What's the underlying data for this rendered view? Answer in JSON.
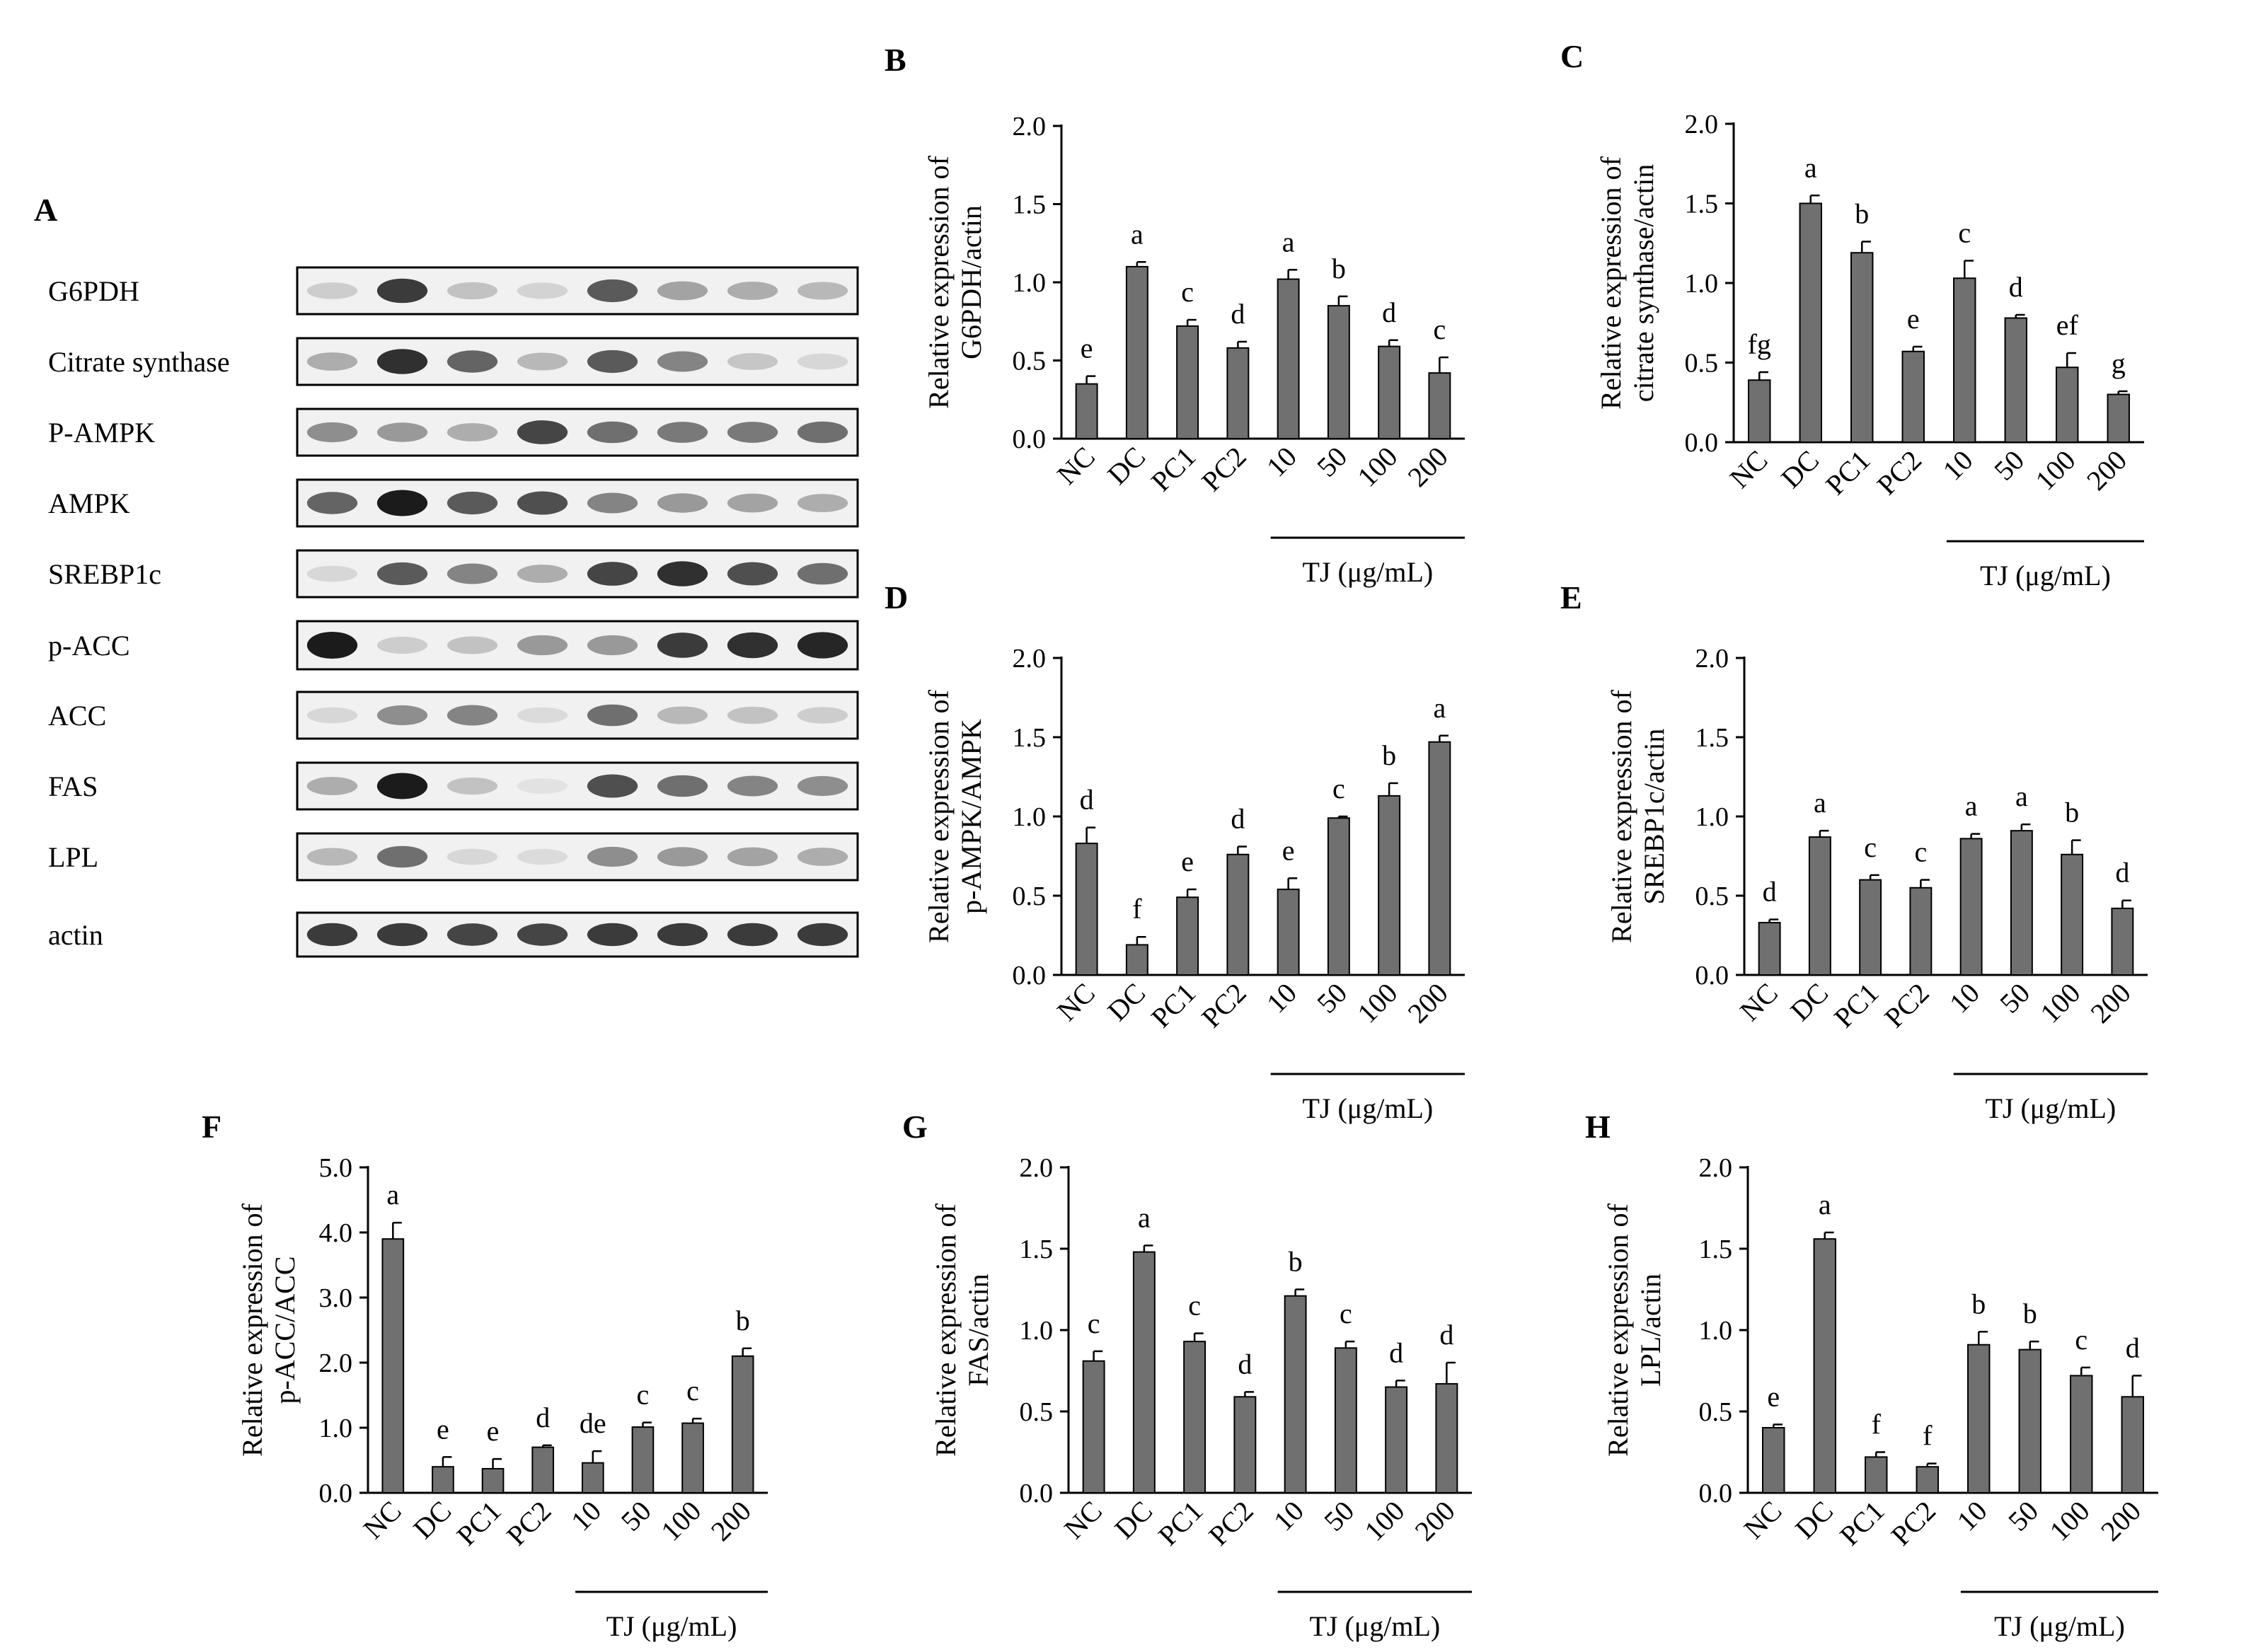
{
  "blot": {
    "panel_label": "A",
    "rows": [
      "G6PDH",
      "Citrate synthase",
      "P-AMPK",
      "AMPK",
      "SREBP1c",
      "p-ACC",
      "ACC",
      "FAS",
      "LPL",
      "actin"
    ],
    "intensities": [
      [
        0.15,
        0.85,
        0.2,
        0.12,
        0.7,
        0.35,
        0.3,
        0.25
      ],
      [
        0.3,
        0.9,
        0.65,
        0.25,
        0.7,
        0.5,
        0.18,
        0.1
      ],
      [
        0.45,
        0.4,
        0.3,
        0.8,
        0.6,
        0.55,
        0.55,
        0.6
      ],
      [
        0.65,
        1.0,
        0.7,
        0.75,
        0.5,
        0.4,
        0.35,
        0.3
      ],
      [
        0.1,
        0.7,
        0.5,
        0.3,
        0.8,
        0.9,
        0.75,
        0.6
      ],
      [
        1.0,
        0.15,
        0.2,
        0.4,
        0.4,
        0.85,
        0.9,
        0.95
      ],
      [
        0.1,
        0.45,
        0.5,
        0.08,
        0.6,
        0.25,
        0.2,
        0.15
      ],
      [
        0.3,
        1.0,
        0.2,
        0.05,
        0.75,
        0.6,
        0.5,
        0.45
      ],
      [
        0.25,
        0.6,
        0.1,
        0.08,
        0.45,
        0.4,
        0.35,
        0.3
      ],
      [
        0.85,
        0.85,
        0.8,
        0.8,
        0.85,
        0.85,
        0.85,
        0.85
      ]
    ]
  },
  "chart_data": [
    {
      "panel": "B",
      "type": "bar",
      "ylabel_lines": [
        "Relative expression of",
        "G6PDH/actin"
      ],
      "ylim": [
        0,
        2.0
      ],
      "yticks": [
        "0.0",
        "0.5",
        "1.0",
        "1.5",
        "2.0"
      ],
      "categories": [
        "NC",
        "DC",
        "PC1",
        "PC2",
        "10",
        "50",
        "100",
        "200"
      ],
      "values": [
        0.35,
        1.1,
        0.72,
        0.58,
        1.02,
        0.85,
        0.59,
        0.42
      ],
      "errors": [
        0.05,
        0.03,
        0.04,
        0.04,
        0.06,
        0.06,
        0.04,
        0.1
      ],
      "letters": [
        "e",
        "a",
        "c",
        "d",
        "a",
        "b",
        "d",
        "c"
      ],
      "group_label": "TJ (μg/mL)"
    },
    {
      "panel": "C",
      "type": "bar",
      "ylabel_lines": [
        "Relative expression of",
        "citrate synthase/actin"
      ],
      "ylim": [
        0,
        2.0
      ],
      "yticks": [
        "0.0",
        "0.5",
        "1.0",
        "1.5",
        "2.0"
      ],
      "categories": [
        "NC",
        "DC",
        "PC1",
        "PC2",
        "10",
        "50",
        "100",
        "200"
      ],
      "values": [
        0.39,
        1.5,
        1.19,
        0.57,
        1.03,
        0.78,
        0.47,
        0.3
      ],
      "errors": [
        0.05,
        0.05,
        0.07,
        0.03,
        0.11,
        0.02,
        0.09,
        0.02
      ],
      "letters": [
        "fg",
        "a",
        "b",
        "e",
        "c",
        "d",
        "ef",
        "g"
      ],
      "group_label": "TJ (μg/mL)"
    },
    {
      "panel": "D",
      "type": "bar",
      "ylabel_lines": [
        "Relative expression of",
        "p-AMPK/AMPK"
      ],
      "ylim": [
        0,
        2.0
      ],
      "yticks": [
        "0.0",
        "0.5",
        "1.0",
        "1.5",
        "2.0"
      ],
      "categories": [
        "NC",
        "DC",
        "PC1",
        "PC2",
        "10",
        "50",
        "100",
        "200"
      ],
      "values": [
        0.83,
        0.19,
        0.49,
        0.76,
        0.54,
        0.99,
        1.13,
        1.47
      ],
      "errors": [
        0.1,
        0.05,
        0.05,
        0.05,
        0.07,
        0.01,
        0.08,
        0.04
      ],
      "letters": [
        "d",
        "f",
        "e",
        "d",
        "e",
        "c",
        "b",
        "a"
      ],
      "group_label": "TJ (μg/mL)"
    },
    {
      "panel": "E",
      "type": "bar",
      "ylabel_lines": [
        "Relative expression of",
        "SREBP1c/actin"
      ],
      "ylim": [
        0,
        2.0
      ],
      "yticks": [
        "0.0",
        "0.5",
        "1.0",
        "1.5",
        "2.0"
      ],
      "categories": [
        "NC",
        "DC",
        "PC1",
        "PC2",
        "10",
        "50",
        "100",
        "200"
      ],
      "values": [
        0.33,
        0.87,
        0.6,
        0.55,
        0.86,
        0.91,
        0.76,
        0.42
      ],
      "errors": [
        0.02,
        0.04,
        0.03,
        0.05,
        0.03,
        0.04,
        0.09,
        0.05
      ],
      "letters": [
        "d",
        "a",
        "c",
        "c",
        "a",
        "a",
        "b",
        "d"
      ],
      "group_label": "TJ (μg/mL)"
    },
    {
      "panel": "F",
      "type": "bar",
      "ylabel_lines": [
        "Relative expression of",
        "p-ACC/ACC"
      ],
      "ylim": [
        0,
        5.0
      ],
      "yticks": [
        "0.0",
        "1.0",
        "2.0",
        "3.0",
        "4.0",
        "5.0"
      ],
      "categories": [
        "NC",
        "DC",
        "PC1",
        "PC2",
        "10",
        "50",
        "100",
        "200"
      ],
      "values": [
        3.9,
        0.4,
        0.37,
        0.7,
        0.46,
        1.01,
        1.07,
        2.1
      ],
      "errors": [
        0.25,
        0.15,
        0.15,
        0.03,
        0.18,
        0.07,
        0.07,
        0.12
      ],
      "letters": [
        "a",
        "e",
        "e",
        "d",
        "de",
        "c",
        "c",
        "b"
      ],
      "group_label": "TJ (μg/mL)"
    },
    {
      "panel": "G",
      "type": "bar",
      "ylabel_lines": [
        "Relative expression of",
        "FAS/actin"
      ],
      "ylim": [
        0,
        2.0
      ],
      "yticks": [
        "0.0",
        "0.5",
        "1.0",
        "1.5",
        "2.0"
      ],
      "categories": [
        "NC",
        "DC",
        "PC1",
        "PC2",
        "10",
        "50",
        "100",
        "200"
      ],
      "values": [
        0.81,
        1.48,
        0.93,
        0.59,
        1.21,
        0.89,
        0.65,
        0.67
      ],
      "errors": [
        0.06,
        0.04,
        0.05,
        0.03,
        0.04,
        0.04,
        0.04,
        0.13
      ],
      "letters": [
        "c",
        "a",
        "c",
        "d",
        "b",
        "c",
        "d",
        "d"
      ],
      "group_label": "TJ (μg/mL)"
    },
    {
      "panel": "H",
      "type": "bar",
      "ylabel_lines": [
        "Relative expression of",
        "LPL/actin"
      ],
      "ylim": [
        0,
        2.0
      ],
      "yticks": [
        "0.0",
        "0.5",
        "1.0",
        "1.5",
        "2.0"
      ],
      "categories": [
        "NC",
        "DC",
        "PC1",
        "PC2",
        "10",
        "50",
        "100",
        "200"
      ],
      "values": [
        0.4,
        1.56,
        0.22,
        0.16,
        0.91,
        0.88,
        0.72,
        0.59
      ],
      "errors": [
        0.02,
        0.04,
        0.03,
        0.02,
        0.08,
        0.05,
        0.05,
        0.13
      ],
      "letters": [
        "e",
        "a",
        "f",
        "f",
        "b",
        "b",
        "c",
        "d"
      ],
      "group_label": "TJ (μg/mL)"
    }
  ]
}
